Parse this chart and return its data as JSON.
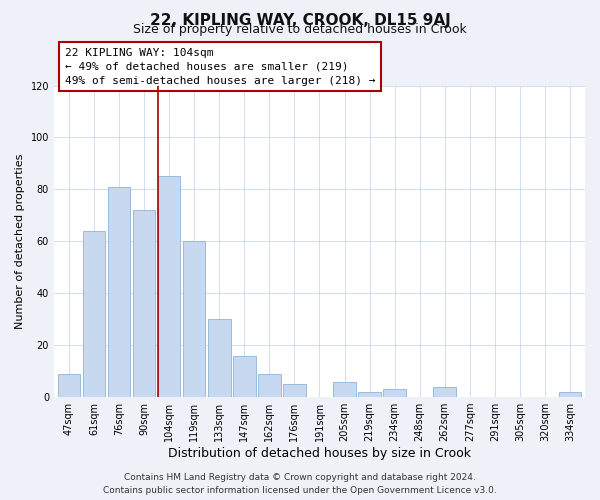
{
  "title": "22, KIPLING WAY, CROOK, DL15 9AJ",
  "subtitle": "Size of property relative to detached houses in Crook",
  "xlabel": "Distribution of detached houses by size in Crook",
  "ylabel": "Number of detached properties",
  "footer_line1": "Contains HM Land Registry data © Crown copyright and database right 2024.",
  "footer_line2": "Contains public sector information licensed under the Open Government Licence v3.0.",
  "annotation_line1": "22 KIPLING WAY: 104sqm",
  "annotation_line2": "← 49% of detached houses are smaller (219)",
  "annotation_line3": "49% of semi-detached houses are larger (218) →",
  "bar_labels": [
    "47sqm",
    "61sqm",
    "76sqm",
    "90sqm",
    "104sqm",
    "119sqm",
    "133sqm",
    "147sqm",
    "162sqm",
    "176sqm",
    "191sqm",
    "205sqm",
    "219sqm",
    "234sqm",
    "248sqm",
    "262sqm",
    "277sqm",
    "291sqm",
    "305sqm",
    "320sqm",
    "334sqm"
  ],
  "bar_values": [
    9,
    64,
    81,
    72,
    85,
    60,
    30,
    16,
    9,
    5,
    0,
    6,
    2,
    3,
    0,
    4,
    0,
    0,
    0,
    0,
    2
  ],
  "bar_color": "#c6d9f0",
  "bar_edge_color": "#8fb4d9",
  "highlight_index": 4,
  "vline_color": "#aa0000",
  "ylim": [
    0,
    120
  ],
  "yticks": [
    0,
    20,
    40,
    60,
    80,
    100,
    120
  ],
  "bg_color": "#eef2f8",
  "plot_bg_color": "#ffffff",
  "grid_color": "#c8d8ee",
  "annotation_box_edge_color": "#aa0000",
  "title_fontsize": 11,
  "subtitle_fontsize": 9,
  "xlabel_fontsize": 9,
  "ylabel_fontsize": 8,
  "tick_fontsize": 7,
  "annotation_fontsize": 8,
  "footer_fontsize": 6.5
}
